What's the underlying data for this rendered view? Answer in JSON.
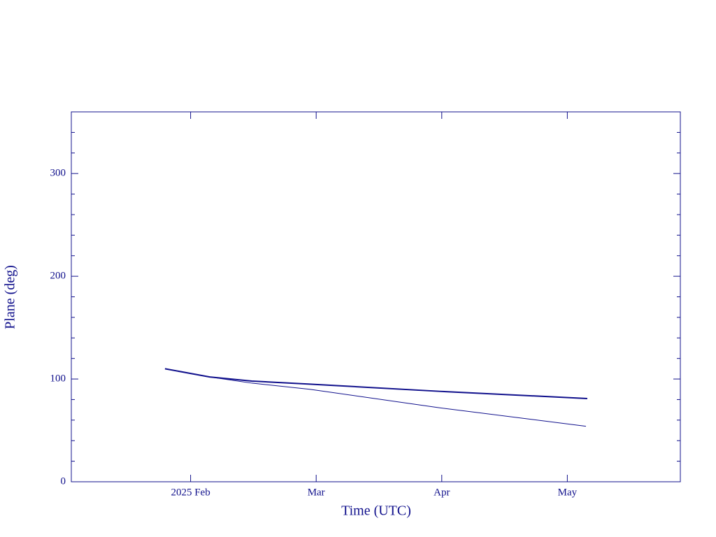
{
  "chart_data": {
    "type": "line",
    "xlabel": "Time (UTC)",
    "ylabel": "Plane (deg)",
    "xlim": [
      1.05,
      5.9
    ],
    "xticks": [
      {
        "value": 2,
        "label": "2025 Feb"
      },
      {
        "value": 3,
        "label": "Mar"
      },
      {
        "value": 4,
        "label": "Apr"
      },
      {
        "value": 5,
        "label": "May"
      }
    ],
    "ylim": [
      0,
      360
    ],
    "yticks": [
      0,
      100,
      200,
      300
    ],
    "yminorticks": [
      20,
      40,
      60,
      80,
      120,
      140,
      160,
      180,
      220,
      240,
      260,
      280,
      320,
      340
    ],
    "color": "#10108c",
    "series": [
      {
        "x": [
          1.796,
          2.152,
          2.487,
          2.949,
          3.984,
          5.148
        ],
        "values": [
          110,
          102,
          96,
          90,
          72,
          54
        ],
        "width": 1
      },
      {
        "x": [
          1.796,
          2.152,
          2.487,
          2.949,
          3.984,
          5.159
        ],
        "values": [
          110,
          102,
          98,
          95,
          88,
          81
        ],
        "width": 2
      }
    ]
  }
}
